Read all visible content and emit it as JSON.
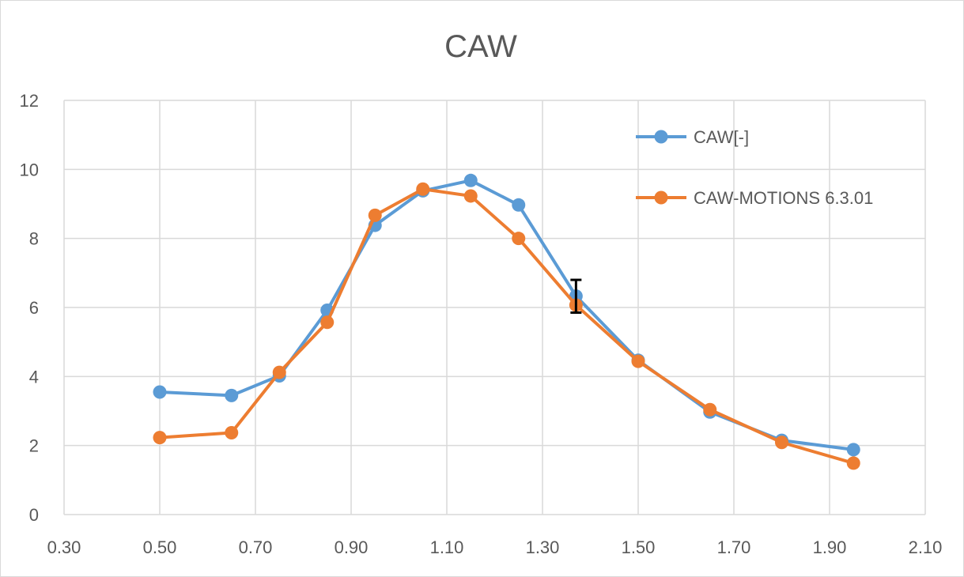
{
  "chart_data": {
    "type": "line",
    "title": "CAW",
    "xlabel": "",
    "ylabel": "",
    "xlim": [
      0.3,
      2.1
    ],
    "ylim": [
      0,
      12
    ],
    "x_ticks": [
      "0.30",
      "0.50",
      "0.70",
      "0.90",
      "1.10",
      "1.30",
      "1.50",
      "1.70",
      "1.90",
      "2.10"
    ],
    "y_ticks": [
      "0",
      "2",
      "4",
      "6",
      "8",
      "10",
      "12"
    ],
    "grid": true,
    "legend_position": "top-right",
    "series": [
      {
        "name": "CAW[-]",
        "color": "#5b9bd5",
        "x": [
          0.5,
          0.65,
          0.75,
          0.85,
          0.95,
          1.05,
          1.15,
          1.25,
          1.37,
          1.5,
          1.65,
          1.8,
          1.95
        ],
        "y": [
          3.55,
          3.45,
          4.02,
          5.92,
          8.38,
          9.38,
          9.68,
          8.97,
          6.33,
          4.47,
          2.97,
          2.15,
          1.88
        ]
      },
      {
        "name": "CAW-MOTIONS 6.3.01",
        "color": "#ed7d31",
        "x": [
          0.5,
          0.65,
          0.75,
          0.85,
          0.95,
          1.05,
          1.15,
          1.25,
          1.37,
          1.5,
          1.65,
          1.8,
          1.95
        ],
        "y": [
          2.23,
          2.37,
          4.12,
          5.57,
          8.67,
          9.43,
          9.23,
          8.0,
          6.07,
          4.44,
          3.04,
          2.09,
          1.49
        ]
      }
    ],
    "error_bars": [
      {
        "series": "CAW[-]",
        "x": 1.37,
        "y": 6.33,
        "low": 5.85,
        "high": 6.8,
        "color": "#000000"
      }
    ]
  }
}
